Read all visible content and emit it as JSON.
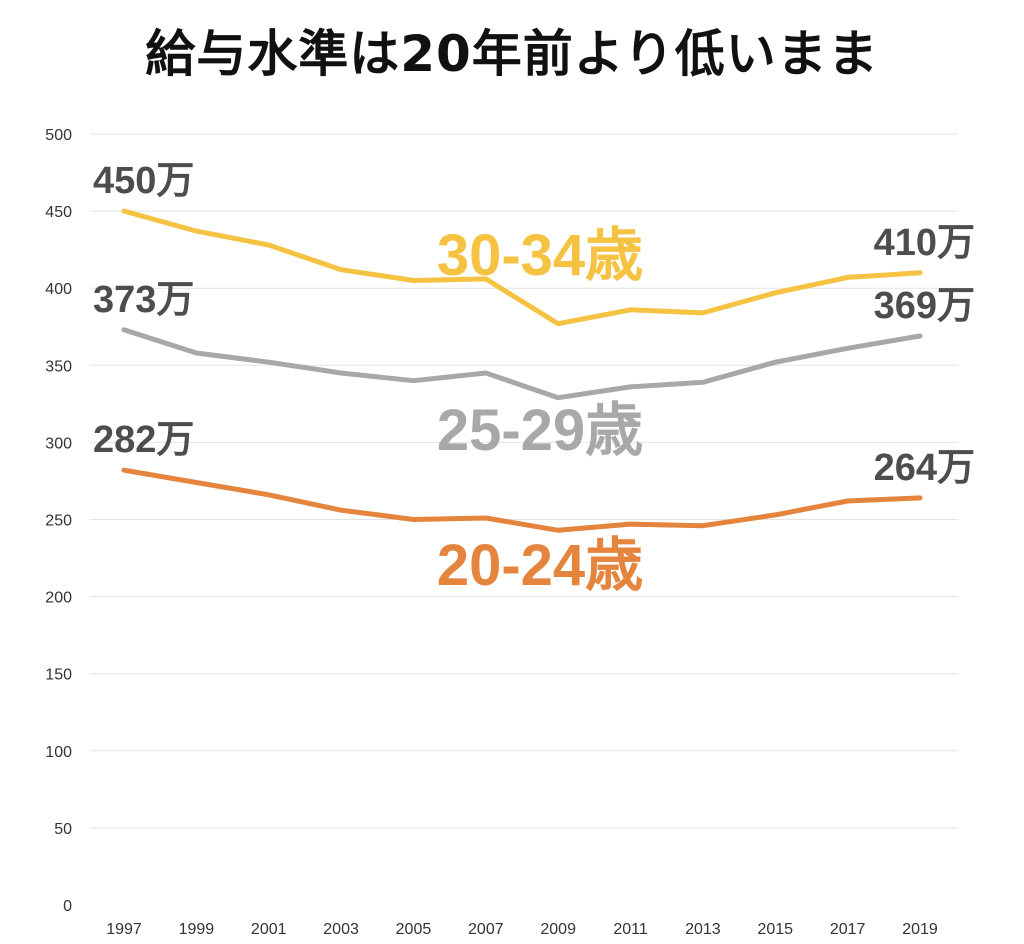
{
  "title": "給与水準は20年前より低いまま",
  "colors": {
    "series_30_34": "#F5C242",
    "series_25_29": "#A8A8A8",
    "series_20_24": "#E5843C",
    "grid": "#e3e3e3",
    "axis_text": "#333333",
    "end_label": "#4d4d4d"
  },
  "chart_data": {
    "type": "line",
    "title": "給与水準は20年前より低いまま",
    "xlabel": "",
    "ylabel": "",
    "ylim": [
      0,
      500
    ],
    "y_ticks": [
      "0",
      "50",
      "100",
      "150",
      "200",
      "250",
      "300",
      "350",
      "400",
      "450",
      "500"
    ],
    "grid": true,
    "legend": "inline labels",
    "x": [
      "1997",
      "1999",
      "2001",
      "2003",
      "2005",
      "2007",
      "2009",
      "2011",
      "2013",
      "2015",
      "2017",
      "2019"
    ],
    "series": [
      {
        "name": "30-34歳",
        "color": "#F5C242",
        "values": [
          450,
          437,
          428,
          412,
          405,
          406,
          377,
          386,
          384,
          397,
          407,
          410
        ],
        "start_label": "450万",
        "end_label": "410万"
      },
      {
        "name": "25-29歳",
        "color": "#A8A8A8",
        "values": [
          373,
          358,
          352,
          345,
          340,
          345,
          329,
          336,
          339,
          352,
          361,
          369
        ],
        "start_label": "373万",
        "end_label": "369万"
      },
      {
        "name": "20-24歳",
        "color": "#E5843C",
        "values": [
          282,
          274,
          266,
          256,
          250,
          251,
          243,
          247,
          246,
          253,
          262,
          264
        ],
        "start_label": "282万",
        "end_label": "264万"
      }
    ]
  }
}
